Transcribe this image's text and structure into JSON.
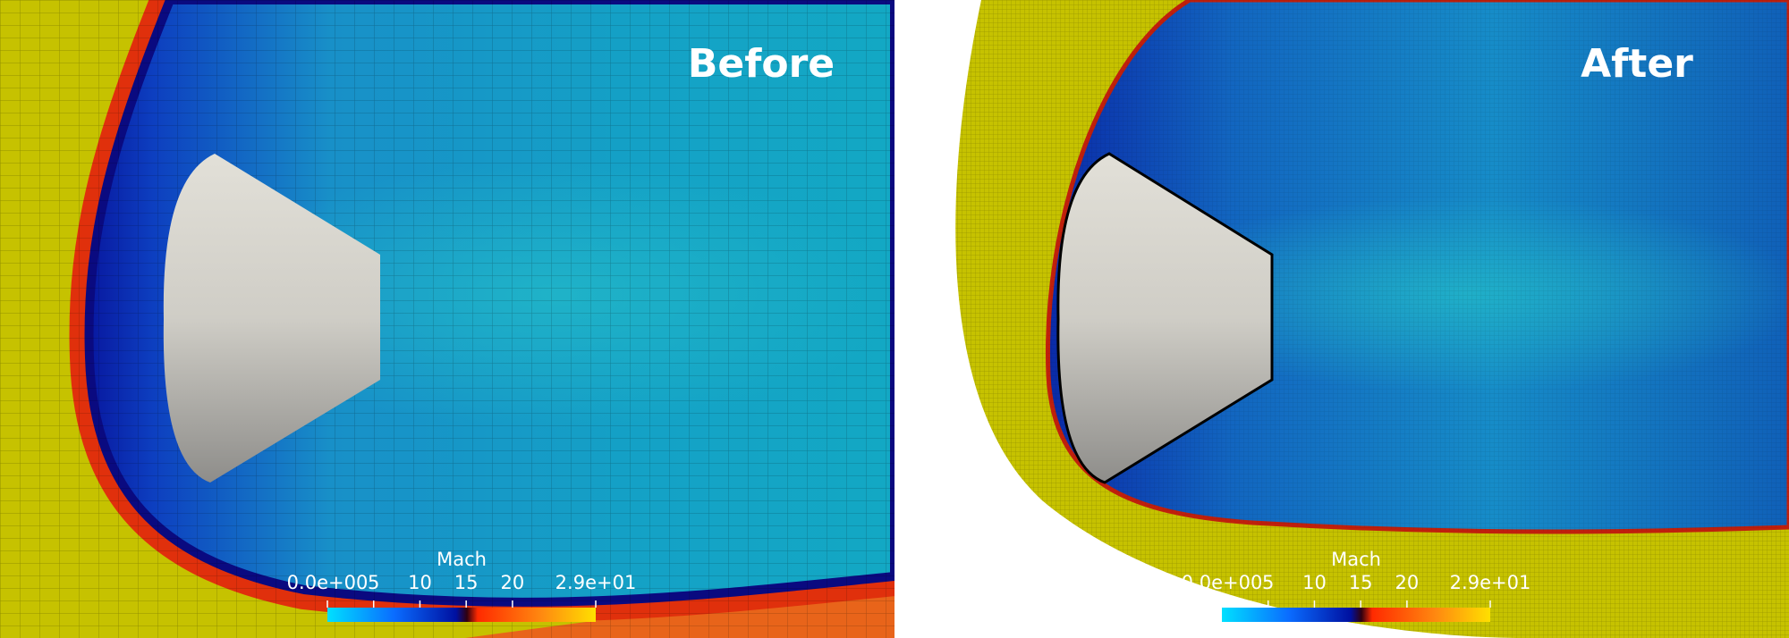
{
  "panels": [
    {
      "title": "Before",
      "colorbar": {
        "title": "Mach",
        "range": [
          0,
          29
        ],
        "ticks": [
          {
            "value": 0,
            "label": "0.0e+00"
          },
          5,
          10,
          15,
          20,
          {
            "value": 29,
            "label": "2.9e+01"
          }
        ]
      }
    },
    {
      "title": "After",
      "colorbar": {
        "title": "Mach",
        "range": [
          0,
          29
        ],
        "ticks": [
          {
            "value": 0,
            "label": "0.0e+00"
          },
          5,
          10,
          15,
          20,
          {
            "value": 29,
            "label": "2.9e+01"
          }
        ]
      }
    }
  ]
}
